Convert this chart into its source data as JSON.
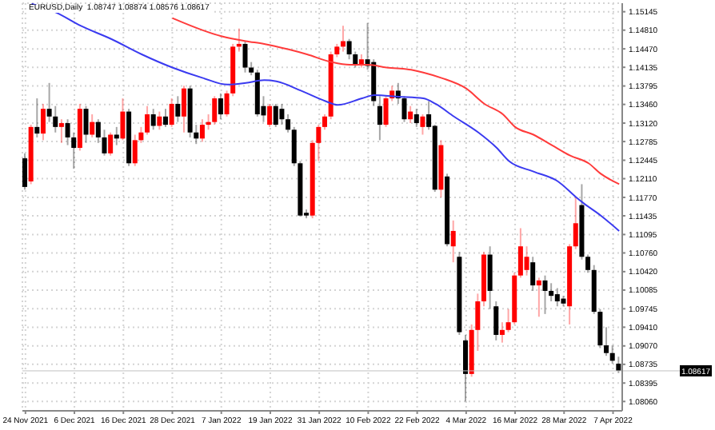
{
  "chart_data": {
    "type": "candlestick",
    "title": "EURUSD,Daily  1.08747 1.08874 1.08576 1.08617",
    "categories": [
      "24 Nov 2021",
      null,
      null,
      null,
      null,
      null,
      null,
      null,
      "6 Dec 2021",
      null,
      null,
      null,
      null,
      null,
      null,
      null,
      "16 Dec 2021",
      null,
      null,
      null,
      null,
      null,
      null,
      null,
      "28 Dec 2021",
      null,
      null,
      null,
      null,
      null,
      null,
      null,
      "7 Jan 2022",
      null,
      null,
      null,
      null,
      null,
      null,
      null,
      "19 Jan 2022",
      null,
      null,
      null,
      null,
      null,
      null,
      null,
      "31 Jan 2022",
      null,
      null,
      null,
      null,
      null,
      null,
      null,
      "10 Feb 2022",
      null,
      null,
      null,
      null,
      null,
      null,
      null,
      "22 Feb 2022",
      null,
      null,
      null,
      null,
      null,
      null,
      null,
      "4 Mar 2022",
      null,
      null,
      null,
      null,
      null,
      null,
      null,
      "16 Mar 2022",
      null,
      null,
      null,
      null,
      null,
      null,
      null,
      "28 Mar 2022",
      null,
      null,
      null,
      null,
      null,
      null,
      null,
      "7 Apr 2022",
      null
    ],
    "ohlc": [
      [
        1.1248,
        1.1257,
        1.1191,
        1.1196
      ],
      [
        1.1206,
        1.1309,
        1.1201,
        1.1305
      ],
      [
        1.1305,
        1.1357,
        1.1286,
        1.1293
      ],
      [
        1.1293,
        1.1347,
        1.1281,
        1.1338
      ],
      [
        1.1338,
        1.1385,
        1.1314,
        1.1324
      ],
      [
        1.1324,
        1.1343,
        1.1295,
        1.1305
      ],
      [
        1.1305,
        1.1319,
        1.1276,
        1.1312
      ],
      [
        1.1312,
        1.1319,
        1.1272,
        1.1286
      ],
      [
        1.1286,
        1.1295,
        1.1229,
        1.1267
      ],
      [
        1.1267,
        1.1347,
        1.1262,
        1.1338
      ],
      [
        1.1338,
        1.1343,
        1.1276,
        1.1291
      ],
      [
        1.1291,
        1.1328,
        1.1286,
        1.1314
      ],
      [
        1.1314,
        1.1319,
        1.1276,
        1.1286
      ],
      [
        1.1286,
        1.13,
        1.1253,
        1.1257
      ],
      [
        1.1257,
        1.1295,
        1.1253,
        1.1291
      ],
      [
        1.1291,
        1.1305,
        1.1272,
        1.1284
      ],
      [
        1.1284,
        1.1357,
        1.1281,
        1.1333
      ],
      [
        1.1333,
        1.1338,
        1.1234,
        1.1239
      ],
      [
        1.1239,
        1.1291,
        1.1234,
        1.1281
      ],
      [
        1.1281,
        1.1305,
        1.1276,
        1.1295
      ],
      [
        1.1295,
        1.1343,
        1.1291,
        1.1328
      ],
      [
        1.1328,
        1.1338,
        1.13,
        1.1307
      ],
      [
        1.1307,
        1.1333,
        1.13,
        1.1324
      ],
      [
        1.1324,
        1.1338,
        1.1305,
        1.1309
      ],
      [
        1.1309,
        1.1357,
        1.1305,
        1.1347
      ],
      [
        1.1347,
        1.1361,
        1.1314,
        1.1324
      ],
      [
        1.1324,
        1.138,
        1.1295,
        1.1375
      ],
      [
        1.1375,
        1.138,
        1.1286,
        1.1295
      ],
      [
        1.1295,
        1.1309,
        1.1274,
        1.1284
      ],
      [
        1.1284,
        1.1319,
        1.1278,
        1.1309
      ],
      [
        1.1309,
        1.1328,
        1.13,
        1.1314
      ],
      [
        1.1314,
        1.1361,
        1.1309,
        1.1357
      ],
      [
        1.1357,
        1.1366,
        1.1319,
        1.1328
      ],
      [
        1.1328,
        1.1371,
        1.1324,
        1.1366
      ],
      [
        1.1366,
        1.1456,
        1.1361,
        1.1451
      ],
      [
        1.1451,
        1.1484,
        1.1442,
        1.1456
      ],
      [
        1.1456,
        1.1461,
        1.1404,
        1.1413
      ],
      [
        1.1413,
        1.1423,
        1.1399,
        1.1404
      ],
      [
        1.1404,
        1.1409,
        1.1324,
        1.1328
      ],
      [
        1.1343,
        1.1361,
        1.1314,
        1.1326
      ],
      [
        1.1309,
        1.1347,
        1.1305,
        1.1343
      ],
      [
        1.1343,
        1.1347,
        1.1305,
        1.1309
      ],
      [
        1.1338,
        1.1347,
        1.1309,
        1.1319
      ],
      [
        1.1319,
        1.1328,
        1.1295,
        1.13
      ],
      [
        1.13,
        1.1305,
        1.1234,
        1.1239
      ],
      [
        1.1239,
        1.1243,
        1.1142,
        1.1144
      ],
      [
        1.1149,
        1.1155,
        1.1139,
        1.1144
      ],
      [
        1.1144,
        1.1281,
        1.1139,
        1.1276
      ],
      [
        1.1276,
        1.1309,
        1.1243,
        1.1305
      ],
      [
        1.1305,
        1.1328,
        1.13,
        1.1324
      ],
      [
        1.1324,
        1.1442,
        1.1319,
        1.1437
      ],
      [
        1.1437,
        1.1456,
        1.1432,
        1.1451
      ],
      [
        1.1451,
        1.1489,
        1.1442,
        1.1461
      ],
      [
        1.1461,
        1.1465,
        1.1428,
        1.1437
      ],
      [
        1.1437,
        1.1442,
        1.1413,
        1.1418
      ],
      [
        1.1418,
        1.1437,
        1.1413,
        1.1428
      ],
      [
        1.1428,
        1.1494,
        1.1409,
        1.1416
      ],
      [
        1.1423,
        1.1428,
        1.1343,
        1.1352
      ],
      [
        1.1343,
        1.1361,
        1.1281,
        1.1309
      ],
      [
        1.1309,
        1.1361,
        1.1305,
        1.1357
      ],
      [
        1.1357,
        1.138,
        1.1352,
        1.1371
      ],
      [
        1.1371,
        1.1385,
        1.1347,
        1.1357
      ],
      [
        1.1357,
        1.1361,
        1.1314,
        1.1319
      ],
      [
        1.1319,
        1.1343,
        1.1312,
        1.1333
      ],
      [
        1.1328,
        1.1338,
        1.1305,
        1.1312
      ],
      [
        1.1305,
        1.1328,
        1.1291,
        1.1324
      ],
      [
        1.1328,
        1.1352,
        1.13,
        1.1305
      ],
      [
        1.1307,
        1.1309,
        1.1187,
        1.1191
      ],
      [
        1.1191,
        1.1281,
        1.1177,
        1.1272
      ],
      [
        1.1215,
        1.122,
        1.1088,
        1.1092
      ],
      [
        1.1088,
        1.1135,
        1.1059,
        1.1116
      ],
      [
        1.1069,
        1.1078,
        1.0927,
        1.0932
      ],
      [
        1.0917,
        1.0927,
        1.0806,
        1.0856
      ],
      [
        1.0856,
        1.0946,
        1.0851,
        1.0936
      ],
      [
        1.0936,
        1.1002,
        1.0898,
        1.0988
      ],
      [
        1.0988,
        1.1078,
        1.0979,
        1.1073
      ],
      [
        1.1073,
        1.1088,
        1.0974,
        1.1007
      ],
      [
        1.0979,
        1.0988,
        1.0917,
        1.0927
      ],
      [
        1.0927,
        1.095,
        1.0913,
        1.0936
      ],
      [
        1.0936,
        1.0974,
        1.0932,
        1.095
      ],
      [
        1.095,
        1.104,
        1.0946,
        1.1035
      ],
      [
        1.1035,
        1.1121,
        1.1031,
        1.1088
      ],
      [
        1.1045,
        1.1088,
        1.1035,
        1.1069
      ],
      [
        1.1059,
        1.1069,
        1.1007,
        1.1017
      ],
      [
        1.1017,
        1.1031,
        1.096,
        1.1026
      ],
      [
        1.1026,
        1.1035,
        1.0965,
        1.1007
      ],
      [
        1.1007,
        1.1021,
        1.0988,
        1.0998
      ],
      [
        1.1001,
        1.1012,
        1.0979,
        1.0988
      ],
      [
        1.0993,
        1.0998,
        1.0979,
        1.0984
      ],
      [
        1.0979,
        1.1092,
        1.0946,
        1.1088
      ],
      [
        1.1088,
        1.1177,
        1.1083,
        1.113
      ],
      [
        1.1163,
        1.1201,
        1.1064,
        1.1069
      ],
      [
        1.1069,
        1.1073,
        1.104,
        1.1045
      ],
      [
        1.1045,
        1.1054,
        1.0965,
        1.0969
      ],
      [
        1.0969,
        1.0974,
        1.0903,
        1.0908
      ],
      [
        1.0908,
        1.0941,
        1.0889,
        1.0894
      ],
      [
        1.0894,
        1.0908,
        1.0875,
        1.088
      ],
      [
        1.08747,
        1.08874,
        1.08576,
        1.08617
      ]
    ],
    "colors": [
      "#000000",
      "#ff0000",
      "#000000",
      "#ff0000",
      "#000000",
      "#000000",
      "#ff0000",
      "#000000",
      "#000000",
      "#ff0000",
      "#000000",
      "#ff0000",
      "#000000",
      "#000000",
      "#ff0000",
      "#000000",
      "#ff0000",
      "#000000",
      "#ff0000",
      "#ff0000",
      "#ff0000",
      "#000000",
      "#ff0000",
      "#000000",
      "#ff0000",
      "#000000",
      "#ff0000",
      "#000000",
      "#000000",
      "#ff0000",
      "#ff0000",
      "#ff0000",
      "#000000",
      "#ff0000",
      "#ff0000",
      "#ff0000",
      "#000000",
      "#000000",
      "#000000",
      "#000000",
      "#ff0000",
      "#000000",
      "#000000",
      "#000000",
      "#000000",
      "#000000",
      "#000000",
      "#ff0000",
      "#ff0000",
      "#ff0000",
      "#ff0000",
      "#ff0000",
      "#ff0000",
      "#000000",
      "#000000",
      "#ff0000",
      "#000000",
      "#000000",
      "#000000",
      "#ff0000",
      "#ff0000",
      "#000000",
      "#000000",
      "#ff0000",
      "#000000",
      "#ff0000",
      "#000000",
      "#000000",
      "#ff0000",
      "#000000",
      "#ff0000",
      "#000000",
      "#000000",
      "#ff0000",
      "#ff0000",
      "#ff0000",
      "#000000",
      "#000000",
      "#ff0000",
      "#ff0000",
      "#ff0000",
      "#ff0000",
      "#ff0000",
      "#000000",
      "#ff0000",
      "#000000",
      "#000000",
      "#000000",
      "#000000",
      "#ff0000",
      "#ff0000",
      "#000000",
      "#000000",
      "#000000",
      "#000000",
      "#000000",
      "#000000",
      "#000000"
    ],
    "series": [
      {
        "type": "line",
        "color": "#ff3b3b",
        "values": [
          null,
          null,
          null,
          null,
          null,
          null,
          null,
          null,
          null,
          null,
          null,
          null,
          null,
          null,
          null,
          null,
          null,
          null,
          null,
          null,
          null,
          null,
          null,
          null,
          1.1503,
          null,
          null,
          null,
          null,
          null,
          null,
          null,
          1.147,
          null,
          null,
          null,
          1.1461,
          null,
          null,
          1.1456,
          null,
          null,
          null,
          1.1446,
          null,
          null,
          1.1437,
          null,
          null,
          null,
          1.1423,
          null,
          null,
          1.1418,
          null,
          null,
          1.1418,
          null,
          null,
          1.1413,
          null,
          null,
          null,
          1.1409,
          null,
          1.1404,
          null,
          null,
          1.1394,
          null,
          null,
          null,
          1.1375,
          null,
          null,
          1.1347,
          null,
          null,
          1.1328,
          null,
          1.1305,
          null,
          null,
          1.1291,
          null,
          null,
          1.1272,
          null,
          null,
          1.1253,
          null,
          null,
          1.1239,
          null,
          1.122,
          null,
          null,
          1.1201
        ]
      },
      {
        "type": "line",
        "color": "#3a3af0",
        "values": [
          null,
          1.1529,
          null,
          null,
          null,
          1.1513,
          null,
          null,
          null,
          1.1489,
          null,
          null,
          null,
          null,
          1.1465,
          null,
          null,
          null,
          null,
          1.1437,
          null,
          null,
          null,
          null,
          1.1413,
          null,
          null,
          null,
          null,
          1.1394,
          null,
          null,
          null,
          1.1382,
          null,
          null,
          1.1385,
          null,
          null,
          1.139,
          null,
          1.1388,
          null,
          null,
          null,
          1.1371,
          null,
          null,
          null,
          1.1352,
          null,
          1.1345,
          null,
          null,
          null,
          1.1357,
          null,
          1.1363,
          null,
          null,
          null,
          1.136,
          null,
          null,
          null,
          1.1357,
          null,
          1.1347,
          null,
          null,
          1.1324,
          null,
          null,
          null,
          1.1295,
          null,
          null,
          1.1267,
          null,
          1.1243,
          null,
          null,
          null,
          1.1224,
          null,
          null,
          null,
          1.1206,
          null,
          null,
          1.1177,
          1.1168,
          null,
          null,
          1.1144,
          null,
          null,
          1.1116
        ]
      }
    ],
    "ylim": [
      1.0789,
      1.153
    ],
    "yticks": [
      {
        "value": 1.15145,
        "label": "1.15145"
      },
      {
        "value": 1.1481,
        "label": "1.14810"
      },
      {
        "value": 1.1447,
        "label": "1.14470"
      },
      {
        "value": 1.14135,
        "label": "1.14135"
      },
      {
        "value": 1.13795,
        "label": "1.13795"
      },
      {
        "value": 1.1346,
        "label": "1.13460"
      },
      {
        "value": 1.1312,
        "label": "1.13120"
      },
      {
        "value": 1.12785,
        "label": "1.12785"
      },
      {
        "value": 1.12445,
        "label": "1.12445"
      },
      {
        "value": 1.1211,
        "label": "1.12110"
      },
      {
        "value": 1.1177,
        "label": "1.11770"
      },
      {
        "value": 1.11435,
        "label": "1.11435"
      },
      {
        "value": 1.11095,
        "label": "1.11095"
      },
      {
        "value": 1.1076,
        "label": "1.10760"
      },
      {
        "value": 1.1042,
        "label": "1.10420"
      },
      {
        "value": 1.10085,
        "label": "1.10085"
      },
      {
        "value": 1.09745,
        "label": "1.09745"
      },
      {
        "value": 1.0941,
        "label": "1.09410"
      },
      {
        "value": 1.0907,
        "label": "1.09070"
      },
      {
        "value": 1.08735,
        "label": "1.08735"
      },
      {
        "value": 1.08395,
        "label": "1.08395"
      },
      {
        "value": 1.0806,
        "label": "1.08060"
      }
    ],
    "ref_lines": [
      {
        "axis": "y",
        "value": 1.08617,
        "label": "1.08617"
      }
    ],
    "grid": true
  }
}
